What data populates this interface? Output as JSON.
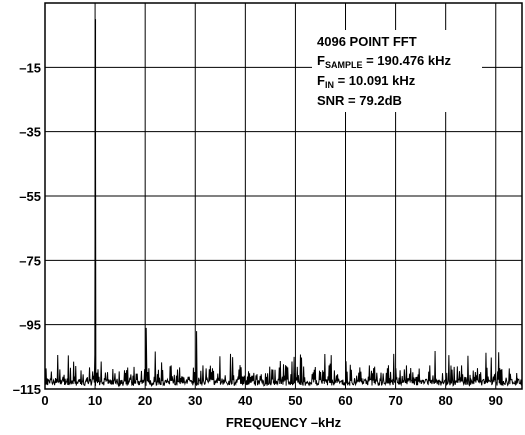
{
  "chart_data": {
    "type": "line",
    "xlabel": "FREQUENCY –kHz",
    "ylabel": "",
    "xlim": [
      0,
      95.238
    ],
    "ylim": [
      -115,
      5
    ],
    "x_ticks": [
      0,
      10,
      20,
      30,
      40,
      50,
      60,
      70,
      80,
      90
    ],
    "x_tick_labels": [
      "0",
      "10",
      "20",
      "30",
      "40",
      "50",
      "60",
      "70",
      "80",
      "90"
    ],
    "y_ticks": [
      -15,
      -35,
      -55,
      -75,
      -95,
      -115
    ],
    "y_tick_labels": [
      "–15",
      "–35",
      "–55",
      "–75",
      "–95",
      "–115"
    ],
    "grid": true,
    "fundamental": {
      "x": 10.091,
      "y": 0
    },
    "harmonics": [
      {
        "x": 20.18,
        "y": -96
      },
      {
        "x": 30.27,
        "y": -97
      }
    ],
    "noise_floor": {
      "low": -114,
      "high": -103,
      "typical_top": -107
    },
    "annotation": {
      "line1": "4096 POINT FFT",
      "line2_main": "F",
      "line2_sub": "SAMPLE",
      "line2_rest": " = 190.476 kHz",
      "line3_main": "F",
      "line3_sub": "IN",
      "line3_rest": " = 10.091 kHz",
      "line4": "SNR = 79.2dB"
    }
  }
}
